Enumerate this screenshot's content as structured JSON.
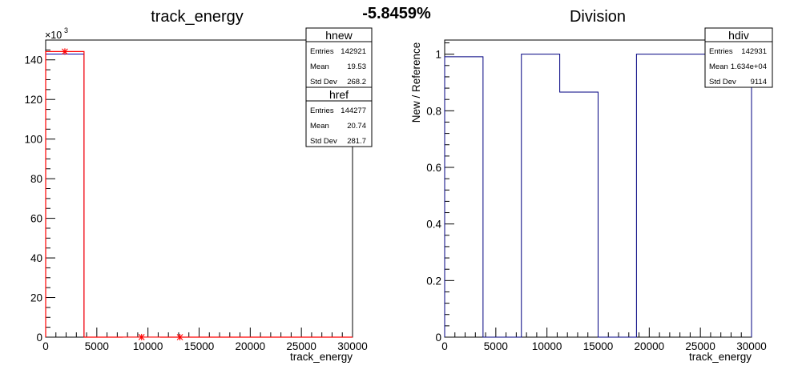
{
  "percent_label": "-5.8459%",
  "chart_data": [
    {
      "type": "histogram",
      "title": "track_energy",
      "xlabel": "track_energy",
      "ylabel": "",
      "xlim": [
        0,
        30000
      ],
      "ylim": [
        0,
        150
      ],
      "y_multiplier_label": "×10",
      "y_multiplier_exp": "3",
      "xticks": [
        0,
        5000,
        10000,
        15000,
        20000,
        25000,
        30000
      ],
      "xtick_labels": [
        "0",
        "5000",
        "10000",
        "15000",
        "20000",
        "25000",
        "30000"
      ],
      "yticks": [
        0,
        20,
        40,
        60,
        80,
        100,
        120,
        140
      ],
      "ytick_labels": [
        "0",
        "20",
        "40",
        "60",
        "80",
        "100",
        "120",
        "140"
      ],
      "grid": false,
      "bin_edges": [
        0,
        3750,
        7500,
        11250,
        15000,
        18750,
        22500,
        26250,
        30000
      ],
      "series": [
        {
          "name": "hnew",
          "color": "#0000aa",
          "values": [
            142.9,
            0,
            0.01,
            0.005,
            0,
            0,
            0,
            0
          ],
          "markers_x": [],
          "marker_y": []
        },
        {
          "name": "href",
          "color": "#ff0000",
          "values": [
            144.2,
            0,
            0.03,
            0.01,
            0,
            0,
            0,
            0
          ],
          "markers_x": [
            1875,
            9375,
            13125
          ],
          "marker_y": [
            144.2,
            0.03,
            0.01
          ]
        }
      ],
      "stat_boxes": [
        {
          "title": "hnew",
          "rows": [
            [
              "Entries",
              "142921"
            ],
            [
              "Mean",
              "19.53"
            ],
            [
              "Std Dev",
              "268.2"
            ]
          ]
        },
        {
          "title": "href",
          "rows": [
            [
              "Entries",
              "144277"
            ],
            [
              "Mean",
              "20.74"
            ],
            [
              "Std Dev",
              "281.7"
            ]
          ]
        }
      ]
    },
    {
      "type": "histogram",
      "title": "Division",
      "xlabel": "track_energy",
      "ylabel": "New / Reference",
      "xlim": [
        0,
        30000
      ],
      "ylim": [
        0,
        1.05
      ],
      "xticks": [
        0,
        5000,
        10000,
        15000,
        20000,
        25000,
        30000
      ],
      "xtick_labels": [
        "0",
        "5000",
        "10000",
        "15000",
        "20000",
        "25000",
        "30000"
      ],
      "yticks": [
        0,
        0.2,
        0.4,
        0.6,
        0.8,
        1.0
      ],
      "ytick_labels": [
        "0",
        "0.2",
        "0.4",
        "0.6",
        "0.8",
        "1"
      ],
      "grid": false,
      "bin_edges": [
        0,
        3750,
        7500,
        11250,
        15000,
        18750,
        22500,
        26250,
        30000
      ],
      "series": [
        {
          "name": "hdiv",
          "color": "#000080",
          "values": [
            0.991,
            0,
            1.0,
            0.866,
            0,
            1.0,
            1.0,
            1.0
          ]
        }
      ],
      "stat_boxes": [
        {
          "title": "hdiv",
          "rows": [
            [
              "Entries",
              "142931"
            ],
            [
              "Mean",
              "1.634e+04"
            ],
            [
              "Std Dev",
              "9114"
            ]
          ]
        }
      ]
    }
  ]
}
